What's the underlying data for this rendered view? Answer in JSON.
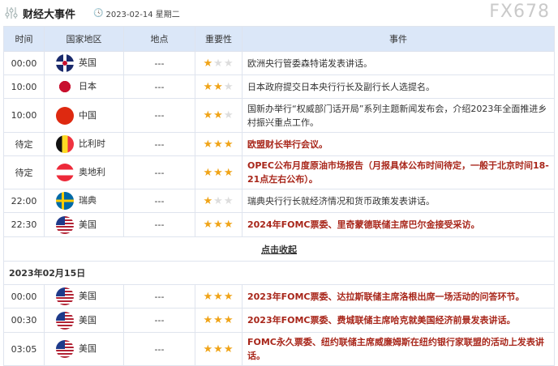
{
  "header": {
    "title": "财经大事件",
    "date": "2023-02-14 星期二"
  },
  "columns": [
    "时间",
    "国家地区",
    "地点",
    "重要性",
    "事件"
  ],
  "rows_day1": [
    {
      "time": "00:00",
      "country": "英国",
      "flag": "uk",
      "location": "---",
      "stars": 1,
      "event": "欧洲央行管委森特诺发表讲话。",
      "important": false
    },
    {
      "time": "10:00",
      "country": "日本",
      "flag": "jp",
      "location": "---",
      "stars": 2,
      "event": "日本政府提交日本央行行长及副行长人选提名。",
      "important": false
    },
    {
      "time": "10:00",
      "country": "中国",
      "flag": "cn",
      "location": "---",
      "stars": 2,
      "event": "国新办举行“权威部门话开局”系列主题新闻发布会，介绍2023年全面推进乡村振兴重点工作。",
      "important": false
    },
    {
      "time": "待定",
      "country": "比利时",
      "flag": "be",
      "location": "---",
      "stars": 3,
      "event": "欧盟财长举行会议。",
      "important": true
    },
    {
      "time": "待定",
      "country": "奥地利",
      "flag": "at",
      "location": "---",
      "stars": 3,
      "event": "OPEC公布月度原油市场报告（月报具体公布时间待定，一般于北京时间18-21点左右公布）。",
      "important": true
    },
    {
      "time": "22:00",
      "country": "瑞典",
      "flag": "se",
      "location": "---",
      "stars": 1,
      "event": "瑞典央行行长就经济情况和货币政策发表讲话。",
      "important": false
    },
    {
      "time": "22:30",
      "country": "美国",
      "flag": "us",
      "location": "---",
      "stars": 3,
      "event": "2024年FOMC票委、里奇蒙德联储主席巴尔金接受采访。",
      "important": true
    }
  ],
  "collapse_label": "点击收起",
  "day2_label": "2023年02月15日",
  "rows_day2": [
    {
      "time": "00:00",
      "country": "美国",
      "flag": "us",
      "location": "---",
      "stars": 3,
      "event": "2023年FOMC票委、达拉斯联储主席洛根出席一场活动的问答环节。",
      "important": true
    },
    {
      "time": "00:30",
      "country": "美国",
      "flag": "us",
      "location": "---",
      "stars": 3,
      "event": "2023年FOMC票委、费城联储主席哈克就美国经济前景发表讲话。",
      "important": true
    },
    {
      "time": "03:05",
      "country": "美国",
      "flag": "us",
      "location": "---",
      "stars": 3,
      "event": "FOMC永久票委、纽约联储主席威廉姆斯在纽约银行家联盟的活动上发表讲话。",
      "important": true
    }
  ],
  "watermark": "FX678",
  "colors": {
    "header_bg": "#dbe7f8",
    "important_text": "#a8261a",
    "star": "#f0a418"
  }
}
